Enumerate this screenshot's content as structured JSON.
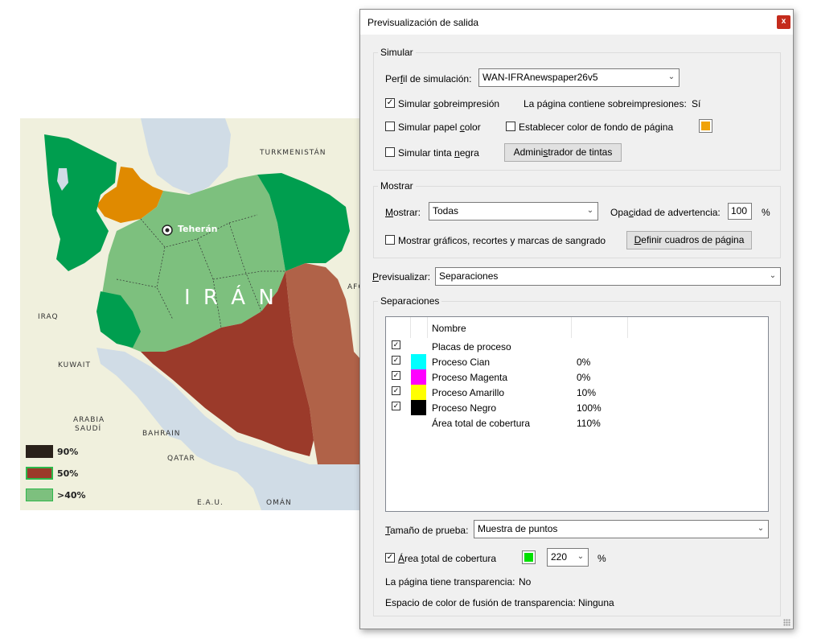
{
  "map": {
    "labels": {
      "turkmenistan": "TURKMENISTÁN",
      "teheran": "Teherán",
      "iran": "I R Á N",
      "iraq": "IRAQ",
      "kuwait": "KUWAIT",
      "arabia1": "ARABIA",
      "arabia2": "SAUDÍ",
      "bahrain": "BAHRAIN",
      "qatar": "QATAR",
      "eau": "E.A.U.",
      "oman": "OMÁN",
      "afg": "AFG"
    },
    "legend": [
      {
        "label": "90%",
        "color": "#2a211a"
      },
      {
        "label": "50%",
        "color": "#9b3a2a"
      },
      {
        "label": ">40%",
        "color": "#7dc07e"
      }
    ],
    "colors": {
      "land": "#f0f0dd",
      "sea": "#d0dce6",
      "dark_green": "#009e4f",
      "light_green": "#7dc07e",
      "orange": "#e08a00",
      "dark_red": "#9b3a2a",
      "brown": "#b06248"
    }
  },
  "dialog": {
    "title": "Previsualización de salida",
    "close_glyph": "x",
    "simular": {
      "group_label": "Simular",
      "perfil_label_pre": "Per",
      "perfil_label_u": "f",
      "perfil_label_post": "il de simulación:",
      "perfil_value": "WAN-IFRAnewspaper26v5",
      "sobreimpresion_pre": "Simular ",
      "sobreimpresion_u": "s",
      "sobreimpresion_post": "obreimpresión",
      "sobreimpresion_checked": "✓",
      "contiene_label": "La página contiene sobreimpresiones:",
      "contiene_value": "Sí",
      "papel_pre": "Simular papel ",
      "papel_u": "c",
      "papel_post": "olor",
      "fondo_label": "Establecer color de fondo de página",
      "fondo_color": "#f0a30a",
      "tinta_pre": "Simular tinta ",
      "tinta_u": "n",
      "tinta_post": "egra",
      "admin_pre": "Admini",
      "admin_u": "s",
      "admin_post": "trador de tintas"
    },
    "mostrar": {
      "group_label": "Mostrar",
      "mostrar_pre": "",
      "mostrar_u": "M",
      "mostrar_post": "ostrar:",
      "mostrar_value": "Todas",
      "opacidad_pre": "Opa",
      "opacidad_u": "c",
      "opacidad_post": "idad de advertencia:",
      "opacidad_value": "100",
      "percent": "%",
      "graficos_label": "Mostrar gráficos, recortes y marcas de sangrado",
      "definir_pre": "",
      "definir_u": "D",
      "definir_post": "efinir cuadros de página"
    },
    "previsualizar": {
      "label_pre": "",
      "label_u": "P",
      "label_post": "revisualizar:",
      "value": "Separaciones"
    },
    "separaciones": {
      "group_label": "Separaciones",
      "column_header": "Nombre",
      "rows": [
        {
          "name": "Placas de proceso",
          "value": "",
          "checked": "✓",
          "color": ""
        },
        {
          "name": "Proceso Cian",
          "value": "0%",
          "checked": "✓",
          "color": "#00ffff"
        },
        {
          "name": "Proceso Magenta",
          "value": "0%",
          "checked": "✓",
          "color": "#ff00ff"
        },
        {
          "name": "Proceso Amarillo",
          "value": "10%",
          "checked": "✓",
          "color": "#ffff00"
        },
        {
          "name": "Proceso Negro",
          "value": "100%",
          "checked": "✓",
          "color": "#000000"
        },
        {
          "name": "Área total de cobertura",
          "value": "110%",
          "checked": "",
          "color": ""
        }
      ],
      "tamano_pre": "",
      "tamano_u": "T",
      "tamano_post": "amaño de prueba:",
      "tamano_value": "Muestra de puntos",
      "area_pre": "",
      "area_u": "Á",
      "area_mid": "rea ",
      "area_u2": "t",
      "area_post": "otal de cobertura",
      "area_checked": "✓",
      "area_color": "#00e000",
      "area_value": "220",
      "area_percent": "%",
      "transparencia_label": "La página tiene transparencia:",
      "transparencia_value": "No",
      "espacio_label": "Espacio de color de fusión de transparencia:",
      "espacio_value": "Ninguna"
    }
  }
}
